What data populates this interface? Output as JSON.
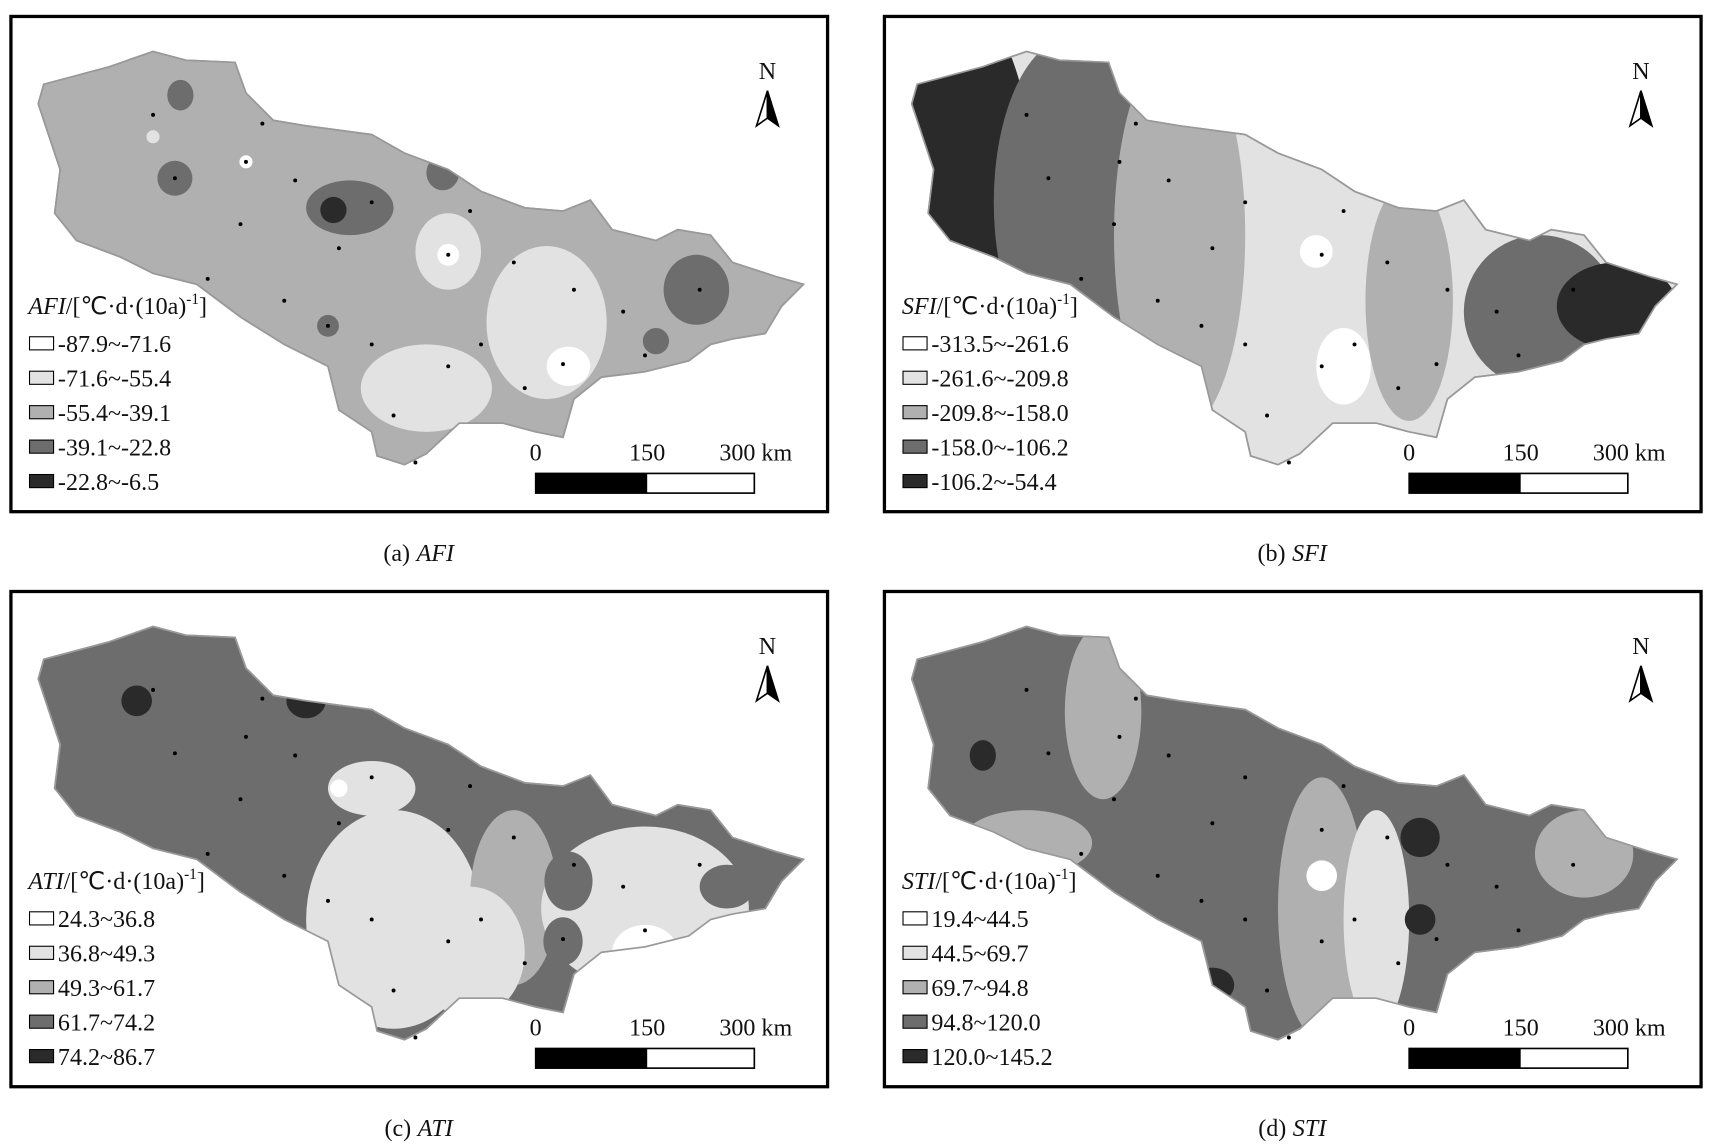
{
  "panels": [
    {
      "caption_letter": "(a)",
      "caption_var": "AFI",
      "legend": {
        "var": "AFI",
        "unit": "/[℃·d·(10a)",
        "sup": "-1",
        "close": "]",
        "items": [
          "-87.9~-71.6",
          "-71.6~-55.4",
          "-55.4~-39.1",
          "-39.1~-22.8",
          "-22.8~-6.5"
        ],
        "colors": [
          "#ffffff",
          "#e2e2e2",
          "#b0b0b0",
          "#6d6d6d",
          "#2a2a2a"
        ]
      },
      "scale": [
        "0",
        "150",
        "300 km"
      ],
      "north": "N"
    },
    {
      "caption_letter": "(b)",
      "caption_var": "SFI",
      "legend": {
        "var": "SFI",
        "unit": "/[℃·d·(10a)",
        "sup": "-1",
        "close": "]",
        "items": [
          "-313.5~-261.6",
          "-261.6~-209.8",
          "-209.8~-158.0",
          "-158.0~-106.2",
          "-106.2~-54.4"
        ],
        "colors": [
          "#ffffff",
          "#e2e2e2",
          "#b0b0b0",
          "#6d6d6d",
          "#2a2a2a"
        ]
      },
      "scale": [
        "0",
        "150",
        "300 km"
      ],
      "north": "N"
    },
    {
      "caption_letter": "(c)",
      "caption_var": "ATI",
      "legend": {
        "var": "ATI",
        "unit": "/[℃·d·(10a)",
        "sup": "-1",
        "close": "]",
        "items": [
          "24.3~36.8",
          "36.8~49.3",
          "49.3~61.7",
          "61.7~74.2",
          "74.2~86.7"
        ],
        "colors": [
          "#ffffff",
          "#e2e2e2",
          "#b0b0b0",
          "#6d6d6d",
          "#2a2a2a"
        ]
      },
      "scale": [
        "0",
        "150",
        "300 km"
      ],
      "north": "N"
    },
    {
      "caption_letter": "(d)",
      "caption_var": "STI",
      "legend": {
        "var": "STI",
        "unit": "/[℃·d·(10a)",
        "sup": "-1",
        "close": "]",
        "items": [
          "19.4~44.5",
          "44.5~69.7",
          "69.7~94.8",
          "94.8~120.0",
          "120.0~145.2"
        ],
        "colors": [
          "#ffffff",
          "#e2e2e2",
          "#b0b0b0",
          "#6d6d6d",
          "#2a2a2a"
        ]
      },
      "scale": [
        "0",
        "150",
        "300 km"
      ],
      "north": "N"
    }
  ]
}
